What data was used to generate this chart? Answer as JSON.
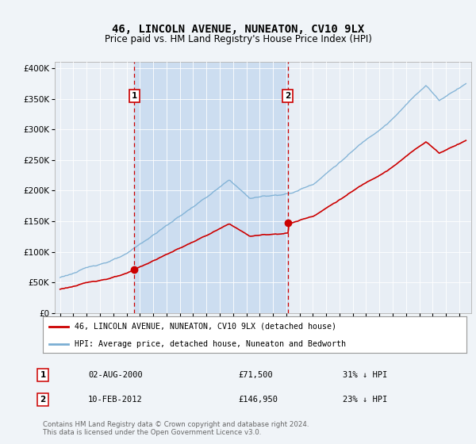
{
  "title": "46, LINCOLN AVENUE, NUNEATON, CV10 9LX",
  "subtitle": "Price paid vs. HM Land Registry's House Price Index (HPI)",
  "bg_color": "#f0f4f8",
  "plot_bg_color": "#e8eef5",
  "shade_color": "#ccddf0",
  "legend_line1": "46, LINCOLN AVENUE, NUNEATON, CV10 9LX (detached house)",
  "legend_line2": "HPI: Average price, detached house, Nuneaton and Bedworth",
  "footer": "Contains HM Land Registry data © Crown copyright and database right 2024.\nThis data is licensed under the Open Government Licence v3.0.",
  "sale1_date": "02-AUG-2000",
  "sale1_price": 71500,
  "sale1_note": "31% ↓ HPI",
  "sale2_date": "10-FEB-2012",
  "sale2_price": 146950,
  "sale2_note": "23% ↓ HPI",
  "hpi_color": "#7bafd4",
  "price_color": "#cc0000",
  "vline_color": "#cc0000",
  "marker1_x": 2000.585,
  "marker2_x": 2012.11,
  "ylim_min": 0,
  "ylim_max": 410000,
  "xlim_min": 1994.6,
  "xlim_max": 2025.9
}
